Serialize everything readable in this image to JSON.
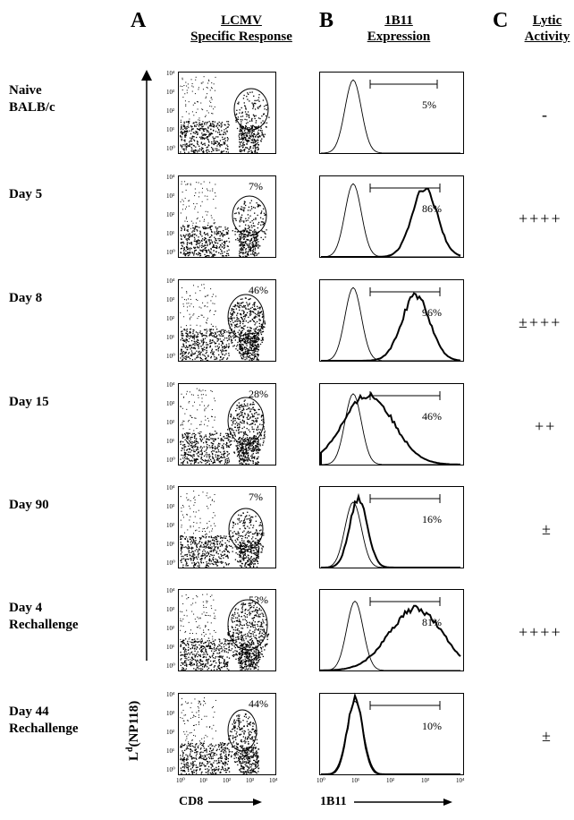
{
  "panels": {
    "a": {
      "letter": "A",
      "title_line1": "LCMV",
      "title_line2": "Specific Response"
    },
    "b": {
      "letter": "B",
      "title_line1": "1B11",
      "title_line2": "Expression"
    },
    "c": {
      "letter": "C",
      "title_line1": "Lytic",
      "title_line2": "Activity"
    }
  },
  "axes": {
    "y_label_main": "L",
    "y_label_sup": "d",
    "y_label_rest": "(NP118)",
    "x_label_a": "CD8",
    "x_label_b": "1B11",
    "ticks_a_y": [
      "10⁴",
      "10³",
      "10²",
      "10¹",
      "10⁰"
    ],
    "ticks_a_x": [
      "10⁰",
      "10¹",
      "10²",
      "10³",
      "10⁴"
    ],
    "ticks_b_x": [
      "10⁰",
      "10¹",
      "10²",
      "10³",
      "10⁴"
    ]
  },
  "rows": [
    {
      "label_line1": "Naive",
      "label_line2": "BALB/c",
      "lcmv_pct": "",
      "expr_pct": "5%",
      "lytic": "-"
    },
    {
      "label_line1": "Day 5",
      "label_line2": "",
      "lcmv_pct": "7%",
      "expr_pct": "86%",
      "lytic": "++++"
    },
    {
      "label_line1": "Day 8",
      "label_line2": "",
      "lcmv_pct": "46%",
      "expr_pct": "96%",
      "lytic": "±+++"
    },
    {
      "label_line1": "Day 15",
      "label_line2": "",
      "lcmv_pct": "28%",
      "expr_pct": "46%",
      "lytic": "++"
    },
    {
      "label_line1": "Day 90",
      "label_line2": "",
      "lcmv_pct": "7%",
      "expr_pct": "16%",
      "lytic": "±"
    },
    {
      "label_line1": "Day 4",
      "label_line2": "Rechallenge",
      "lcmv_pct": "53%",
      "expr_pct": "81%",
      "lytic": "++++"
    },
    {
      "label_line1": "Day 44",
      "label_line2": "Rechallenge",
      "lcmv_pct": "44%",
      "expr_pct": "10%",
      "lytic": "±"
    }
  ]
}
